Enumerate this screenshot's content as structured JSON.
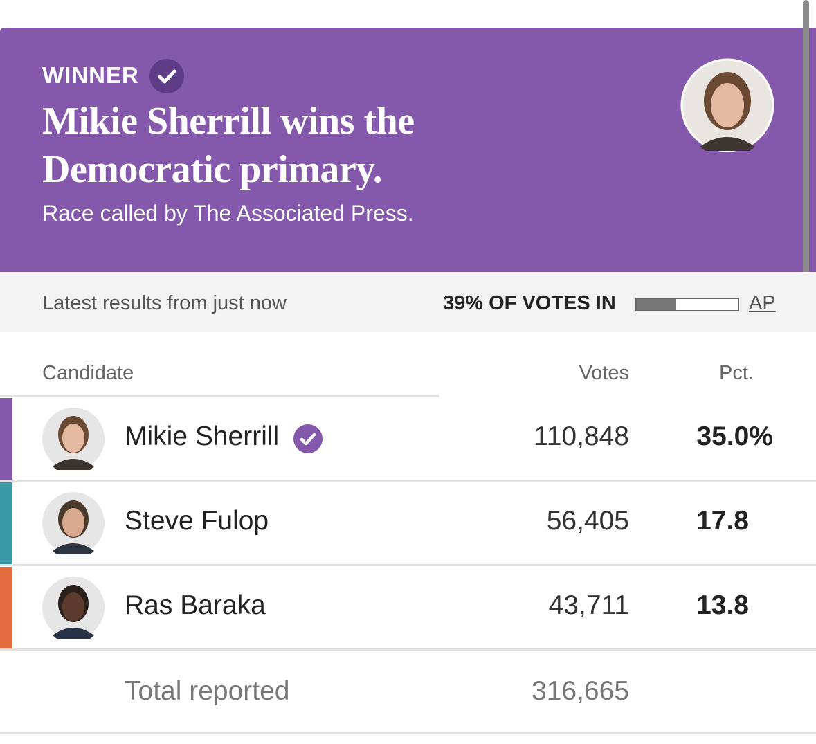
{
  "header": {
    "label": "WINNER",
    "headline": "Mikie Sherrill wins the Democratic primary.",
    "subhead": "Race called by The Associated Press."
  },
  "status": {
    "updated": "Latest results from just now",
    "reporting": {
      "value": 39,
      "label": "39% OF VOTES IN"
    },
    "source": "AP"
  },
  "table": {
    "columns": [
      "Candidate",
      "Votes",
      "Pct."
    ],
    "rows": [
      {
        "name": "Mikie Sherrill",
        "votes": "110,848",
        "pct": "35.0%",
        "color": "#8458ab",
        "winner": true
      },
      {
        "name": "Steve Fulop",
        "votes": "56,405",
        "pct": "17.8",
        "color": "#3a9aa6",
        "winner": false
      },
      {
        "name": "Ras Baraka",
        "votes": "43,711",
        "pct": "13.8",
        "color": "#e16c3d",
        "winner": false
      }
    ],
    "total": {
      "label": "Total reported",
      "votes": "316,665"
    }
  }
}
